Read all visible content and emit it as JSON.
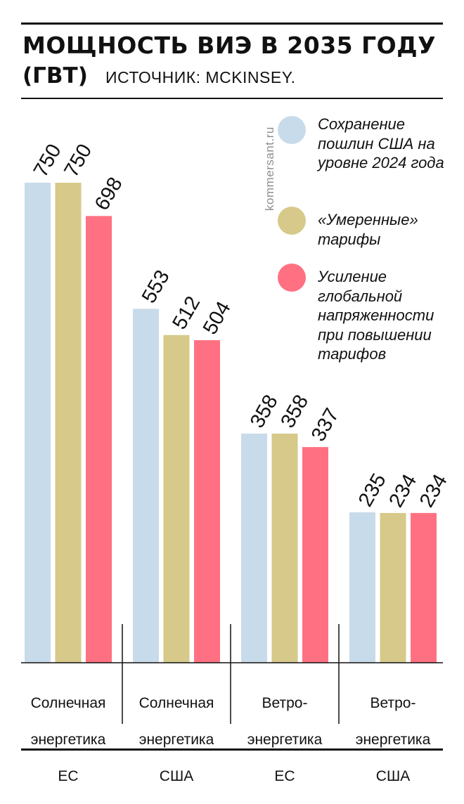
{
  "header": {
    "title": "МОЩНОСТЬ ВИЭ В 2035 ГОДУ",
    "unit": "(ГВТ)",
    "source": "ИСТОЧНИК: MCKINSEY."
  },
  "watermark": "kommersant.ru",
  "colors": {
    "series1": "#c8dbea",
    "series2": "#d6c98a",
    "series3": "#ff7182",
    "text": "#111111"
  },
  "legend": [
    {
      "label": "Сохранение пошлин США на уровне 2024 года",
      "color": "#c8dbea"
    },
    {
      "label": "«Умеренные» тарифы",
      "color": "#d6c98a"
    },
    {
      "label": "Усиление глобальной напряженности при повышении тарифов",
      "color": "#ff7182"
    }
  ],
  "chart_data": {
    "type": "bar",
    "title": "МОЩНОСТЬ ВИЭ В 2035 ГОДУ",
    "ylabel": "ГВт",
    "categories": [
      "Солнечная энергетика ЕС",
      "Солнечная энергетика США",
      "Ветро-энергетика ЕС",
      "Ветро-энергетика США"
    ],
    "category_lines": [
      [
        "Солнечная",
        "энергетика",
        "ЕС"
      ],
      [
        "Солнечная",
        "энергетика",
        "США"
      ],
      [
        "Ветро-",
        "энергетика",
        "ЕС"
      ],
      [
        "Ветро-",
        "энергетика",
        "США"
      ]
    ],
    "series": [
      {
        "name": "Сохранение пошлин США на уровне 2024 года",
        "values": [
          750,
          553,
          358,
          235
        ]
      },
      {
        "name": "«Умеренные» тарифы",
        "values": [
          750,
          512,
          358,
          234
        ]
      },
      {
        "name": "Усиление глобальной напряженности при повышении тарифов",
        "values": [
          698,
          504,
          337,
          234
        ]
      }
    ],
    "ylim": [
      0,
      750
    ],
    "grid": false,
    "legend_position": "top-right"
  }
}
